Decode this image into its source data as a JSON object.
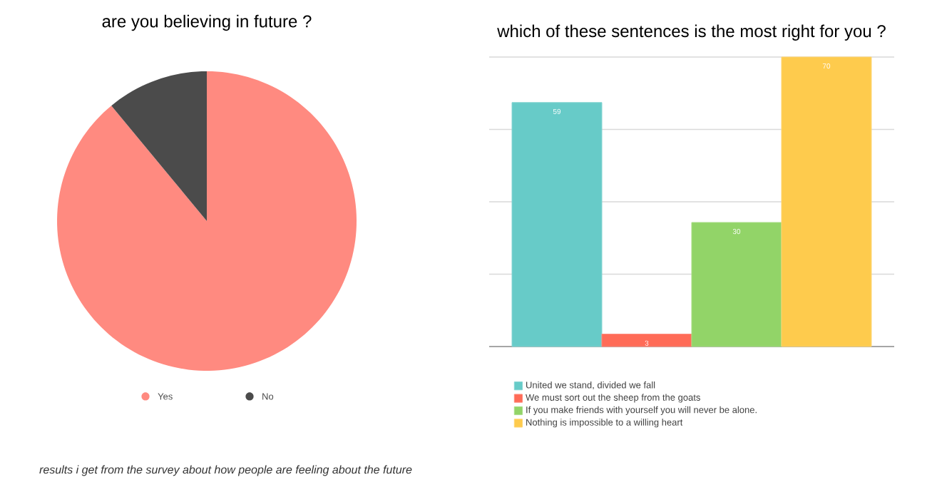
{
  "chart_data": [
    {
      "type": "pie",
      "title": "are you believing in future ?",
      "categories": [
        "Yes",
        "No"
      ],
      "values": [
        89,
        11
      ],
      "colors": [
        "#ff8a80",
        "#4b4b4b"
      ],
      "legend": "bottom",
      "annotations": [
        "results i get from the survey about how people are feeling about the future"
      ]
    },
    {
      "type": "bar",
      "title": "which of these sentences is the most right for you ?",
      "categories": [
        null
      ],
      "series": [
        {
          "name": "United we stand, divided we fall",
          "color": "#67cbc8",
          "values": [
            59
          ]
        },
        {
          "name": "We must sort out the sheep from the goats",
          "color": "#ff6b57",
          "values": [
            3
          ]
        },
        {
          "name": "If you make friends with yourself you will never be alone.",
          "color": "#92d468",
          "values": [
            30
          ]
        },
        {
          "name": "Nothing is impossible to a willing heart",
          "color": "#fecb4d",
          "values": [
            70
          ]
        }
      ],
      "ylim": [
        0,
        70
      ],
      "grid": "y",
      "data_labels": true,
      "legend": "bottom left"
    }
  ]
}
